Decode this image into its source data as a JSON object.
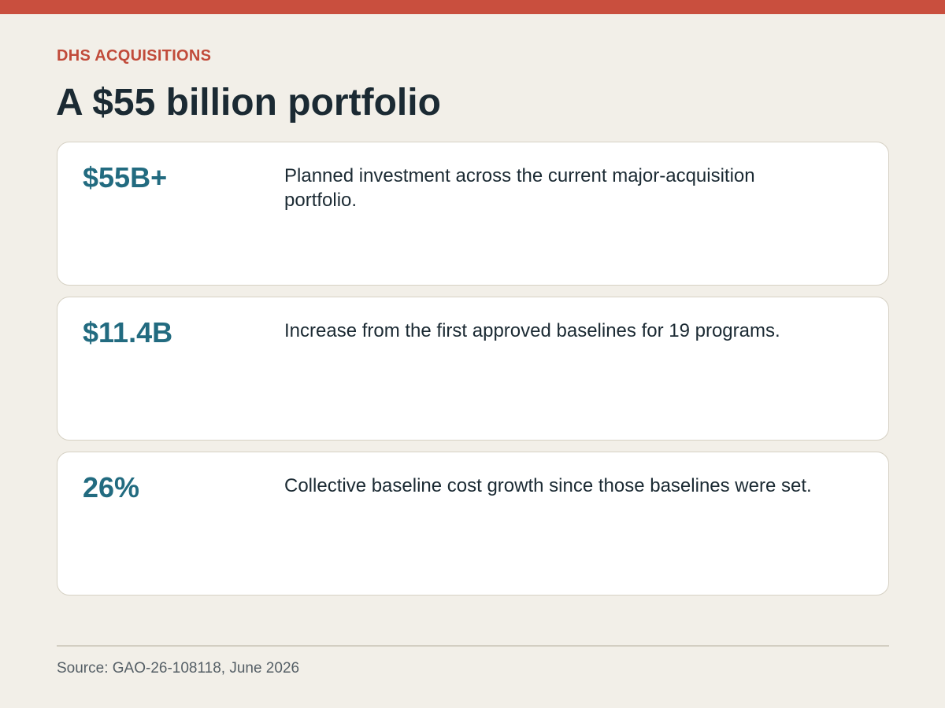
{
  "header": {
    "eyebrow": "DHS ACQUISITIONS",
    "title": "A $55 billion portfolio"
  },
  "stats": [
    {
      "value": "$55B+",
      "description": "Planned investment across the current major-acquisition portfolio."
    },
    {
      "value": "$11.4B",
      "description": "Increase from the first approved baselines for 19 programs."
    },
    {
      "value": "26%",
      "description": "Collective baseline cost growth since those baselines were set."
    }
  ],
  "footer": {
    "source": "Source: GAO-26-108118, June 2026"
  },
  "colors": {
    "accent_bar": "#c94f3e",
    "eyebrow": "#c14b3a",
    "stat_value": "#226b80",
    "background": "#f2efe8",
    "card_background": "#ffffff"
  }
}
